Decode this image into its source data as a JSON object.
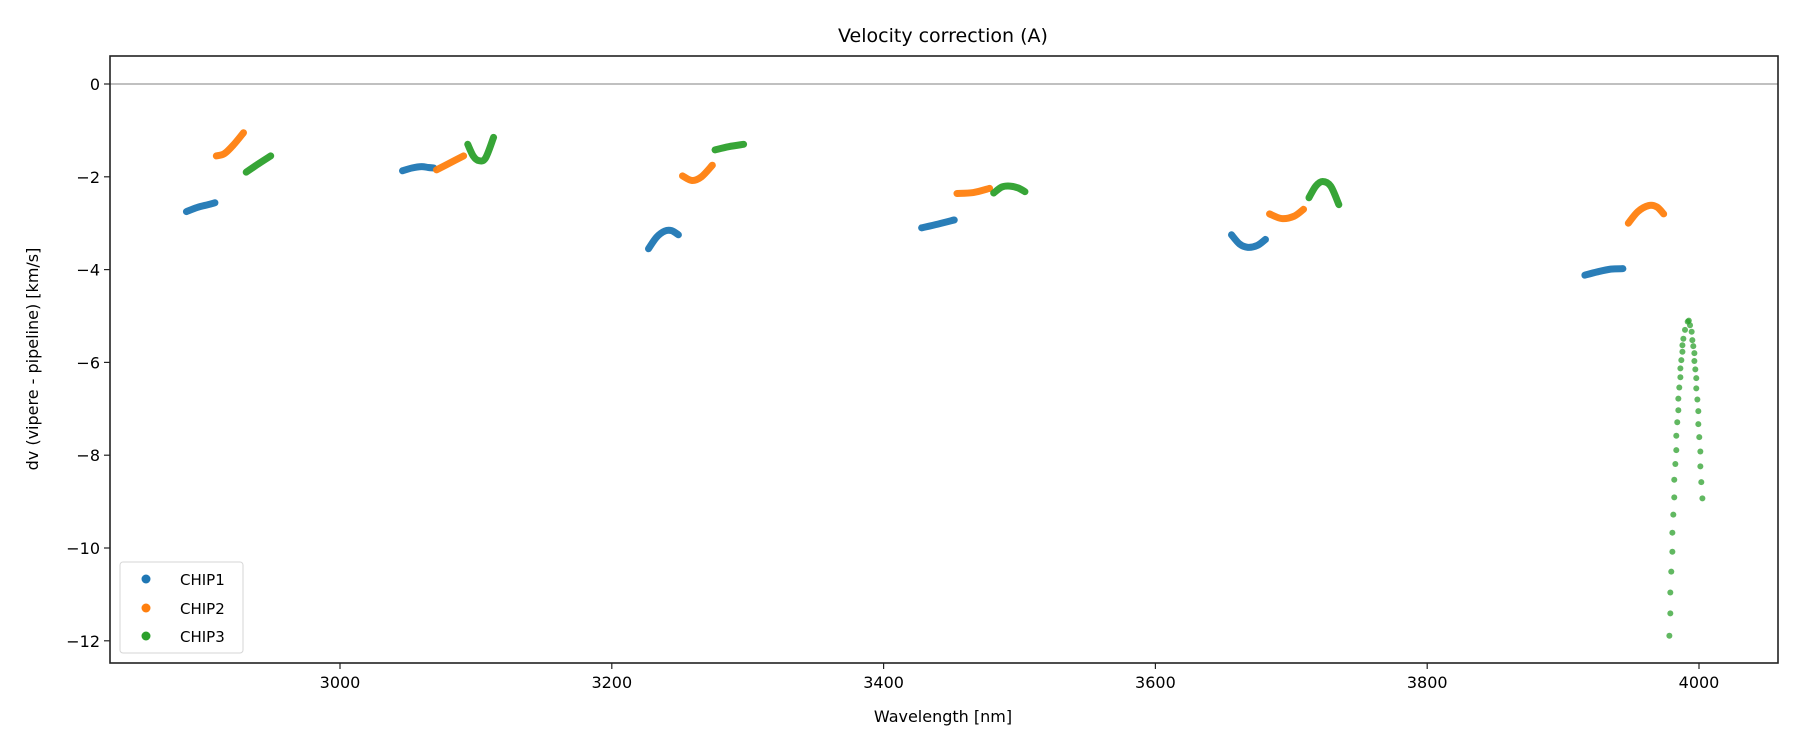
{
  "chart_data": {
    "type": "scatter",
    "title": "Velocity correction (A)",
    "xlabel": "Wavelength [nm]",
    "ylabel": "dv (vipere - pipeline) [km/s]",
    "xlim": [
      2831,
      4058
    ],
    "ylim": [
      -12.47,
      0.6
    ],
    "xticks": [
      3000,
      3200,
      3400,
      3600,
      3800,
      4000
    ],
    "yticks": [
      0,
      -2,
      -4,
      -6,
      -8,
      -10,
      -12
    ],
    "hline": 0,
    "grid": false,
    "legend_position": "lower-left",
    "series": [
      {
        "name": "CHIP1",
        "color": "#1f77b4",
        "segments": [
          [
            [
              2887,
              -2.75
            ],
            [
              2895,
              -2.66
            ],
            [
              2903,
              -2.6
            ],
            [
              2908,
              -2.56
            ]
          ],
          [
            [
              3046,
              -1.87
            ],
            [
              3053,
              -1.81
            ],
            [
              3060,
              -1.78
            ],
            [
              3065,
              -1.8
            ],
            [
              3069,
              -1.81
            ]
          ],
          [
            [
              3227,
              -3.55
            ],
            [
              3233,
              -3.3
            ],
            [
              3239,
              -3.17
            ],
            [
              3244,
              -3.16
            ],
            [
              3249,
              -3.25
            ]
          ],
          [
            [
              3428,
              -3.1
            ],
            [
              3440,
              -3.02
            ],
            [
              3452,
              -2.93
            ]
          ],
          [
            [
              3656,
              -3.25
            ],
            [
              3662,
              -3.45
            ],
            [
              3668,
              -3.52
            ],
            [
              3675,
              -3.48
            ],
            [
              3681,
              -3.35
            ]
          ],
          [
            [
              3916,
              -4.12
            ],
            [
              3925,
              -4.05
            ],
            [
              3935,
              -3.99
            ],
            [
              3944,
              -3.98
            ]
          ]
        ]
      },
      {
        "name": "CHIP2",
        "color": "#ff7f0e",
        "segments": [
          [
            [
              2909,
              -1.55
            ],
            [
              2915,
              -1.5
            ],
            [
              2922,
              -1.3
            ],
            [
              2929,
              -1.05
            ]
          ],
          [
            [
              3071,
              -1.85
            ],
            [
              3081,
              -1.7
            ],
            [
              3091,
              -1.55
            ]
          ],
          [
            [
              3252,
              -1.98
            ],
            [
              3259,
              -2.08
            ],
            [
              3266,
              -2.0
            ],
            [
              3274,
              -1.75
            ]
          ],
          [
            [
              3454,
              -2.36
            ],
            [
              3466,
              -2.34
            ],
            [
              3478,
              -2.25
            ]
          ],
          [
            [
              3684,
              -2.8
            ],
            [
              3693,
              -2.9
            ],
            [
              3702,
              -2.85
            ],
            [
              3709,
              -2.7
            ]
          ],
          [
            [
              3948,
              -3.0
            ],
            [
              3955,
              -2.75
            ],
            [
              3963,
              -2.62
            ],
            [
              3969,
              -2.65
            ],
            [
              3974,
              -2.8
            ]
          ]
        ]
      },
      {
        "name": "CHIP3",
        "color": "#2ca02c",
        "segments": [
          [
            [
              2931,
              -1.9
            ],
            [
              2940,
              -1.72
            ],
            [
              2949,
              -1.55
            ]
          ],
          [
            [
              3094,
              -1.3
            ],
            [
              3098,
              -1.55
            ],
            [
              3102,
              -1.65
            ],
            [
              3107,
              -1.6
            ],
            [
              3113,
              -1.15
            ]
          ],
          [
            [
              3276,
              -1.42
            ],
            [
              3286,
              -1.35
            ],
            [
              3297,
              -1.3
            ]
          ],
          [
            [
              3481,
              -2.35
            ],
            [
              3487,
              -2.22
            ],
            [
              3493,
              -2.2
            ],
            [
              3499,
              -2.24
            ],
            [
              3504,
              -2.32
            ]
          ],
          [
            [
              3713,
              -2.45
            ],
            [
              3718,
              -2.2
            ],
            [
              3723,
              -2.1
            ],
            [
              3729,
              -2.2
            ],
            [
              3735,
              -2.6
            ]
          ]
        ],
        "sparse_points": [
          [
            3991.7,
            -5.12
          ],
          [
            3989.7,
            -5.3
          ],
          [
            3988.5,
            -5.49
          ],
          [
            3987.8,
            -5.63
          ],
          [
            3987.8,
            -5.77
          ],
          [
            3987.0,
            -5.95
          ],
          [
            3986.3,
            -6.13
          ],
          [
            3986.3,
            -6.32
          ],
          [
            3985.5,
            -6.54
          ],
          [
            3984.8,
            -6.78
          ],
          [
            3984.8,
            -7.03
          ],
          [
            3984.0,
            -7.29
          ],
          [
            3983.3,
            -7.58
          ],
          [
            3983.3,
            -7.89
          ],
          [
            3982.6,
            -8.19
          ],
          [
            3981.8,
            -8.53
          ],
          [
            3981.8,
            -8.91
          ],
          [
            3981.1,
            -9.28
          ],
          [
            3980.4,
            -9.67
          ],
          [
            3980.4,
            -10.08
          ],
          [
            3979.6,
            -10.51
          ],
          [
            3978.9,
            -10.96
          ],
          [
            3978.9,
            -11.41
          ],
          [
            3978.2,
            -11.89
          ],
          [
            3992.5,
            -5.1
          ],
          [
            3993.4,
            -5.2
          ],
          [
            3994.6,
            -5.34
          ],
          [
            3995.1,
            -5.52
          ],
          [
            3995.8,
            -5.65
          ],
          [
            3996.6,
            -5.8
          ],
          [
            3996.6,
            -5.97
          ],
          [
            3997.3,
            -6.15
          ],
          [
            3998.0,
            -6.34
          ],
          [
            3998.0,
            -6.56
          ],
          [
            3998.8,
            -6.8
          ],
          [
            3999.5,
            -7.05
          ],
          [
            3999.5,
            -7.33
          ],
          [
            4000.2,
            -7.61
          ],
          [
            4001.0,
            -7.92
          ],
          [
            4001.0,
            -8.24
          ],
          [
            4001.7,
            -8.58
          ],
          [
            4002.5,
            -8.93
          ]
        ]
      }
    ]
  }
}
